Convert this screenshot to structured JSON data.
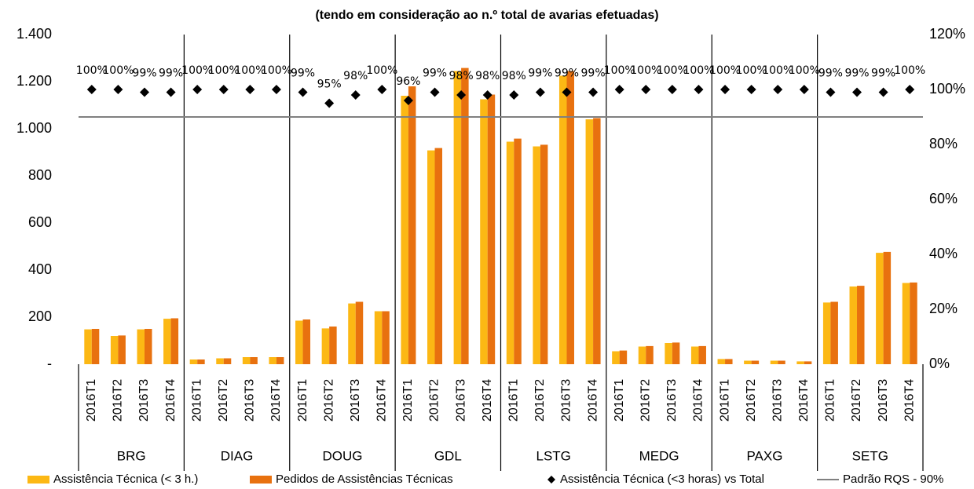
{
  "chart_data": {
    "type": "bar",
    "title": "(tendo em consideração ao n.º total de avarias efetuadas)",
    "categories": [
      "2016T1",
      "2016T2",
      "2016T3",
      "2016T4",
      "2016T1",
      "2016T2",
      "2016T3",
      "2016T4",
      "2016T1",
      "2016T2",
      "2016T3",
      "2016T4",
      "2016T1",
      "2016T2",
      "2016T3",
      "2016T4",
      "2016T1",
      "2016T2",
      "2016T3",
      "2016T4",
      "2016T1",
      "2016T2",
      "2016T3",
      "2016T4",
      "2016T1",
      "2016T2",
      "2016T3",
      "2016T4",
      "2016T1",
      "2016T2",
      "2016T3",
      "2016T4"
    ],
    "groups": [
      "BRG",
      "DIAG",
      "DOUG",
      "GDL",
      "LSTG",
      "MEDG",
      "PAXG",
      "SETG"
    ],
    "series": [
      {
        "name": "Assistência Técnica (< 3 h.)",
        "color": "#fcb814",
        "values": [
          148,
          120,
          148,
          193,
          20,
          25,
          30,
          30,
          185,
          152,
          258,
          225,
          1140,
          908,
          1245,
          1125,
          945,
          925,
          1225,
          1040,
          55,
          75,
          90,
          75,
          22,
          15,
          15,
          12,
          262,
          330,
          473,
          345
        ]
      },
      {
        "name": "Pedidos de Assistências Técnicas",
        "color": "#e8710f",
        "values": [
          150,
          122,
          150,
          195,
          20,
          25,
          30,
          30,
          190,
          160,
          265,
          225,
          1180,
          918,
          1258,
          1145,
          958,
          932,
          1245,
          1045,
          58,
          77,
          92,
          77,
          22,
          15,
          15,
          12,
          265,
          333,
          477,
          347
        ]
      },
      {
        "name": "Assistência Técnica (<3 horas) vs Total",
        "type": "scatter",
        "axis": "y2",
        "color": "#000000",
        "marker": "diamond",
        "values": [
          100,
          100,
          99,
          99,
          100,
          100,
          100,
          100,
          99,
          95,
          98,
          100,
          96,
          99,
          98,
          98,
          98,
          99,
          99,
          99,
          100,
          100,
          100,
          100,
          100,
          100,
          100,
          100,
          99,
          99,
          99,
          100
        ],
        "value_labels": [
          "100%",
          "100%",
          "99%",
          "99%",
          "100%",
          "100%",
          "100%",
          "100%",
          "99%",
          "95%",
          "98%",
          "100%",
          "96%",
          "99%",
          "98%",
          "98%",
          "98%",
          "99%",
          "99%",
          "99%",
          "100%",
          "100%",
          "100%",
          "100%",
          "100%",
          "100%",
          "100%",
          "100%",
          "99%",
          "99%",
          "99%",
          "100%"
        ]
      }
    ],
    "reference_lines": [
      {
        "name": "Padrão RQS - 90%",
        "value": 90,
        "axis": "y2",
        "color": "#808080"
      }
    ],
    "ylim": [
      0,
      1400
    ],
    "yticks": [
      {
        "value": 0,
        "label": "-"
      },
      200,
      400,
      600,
      800,
      {
        "value": 1000,
        "label": "1.000"
      },
      {
        "value": 1200,
        "label": "1.200"
      },
      {
        "value": 1400,
        "label": "1.400"
      }
    ],
    "y2lim": [
      0,
      120
    ],
    "y2ticks": [
      {
        "value": 0,
        "label": "0%"
      },
      {
        "value": 20,
        "label": "20%"
      },
      {
        "value": 40,
        "label": "40%"
      },
      {
        "value": 60,
        "label": "60%"
      },
      {
        "value": 80,
        "label": "80%"
      },
      {
        "value": 100,
        "label": "100%"
      },
      {
        "value": 120,
        "label": "120%"
      }
    ],
    "grid": false
  }
}
